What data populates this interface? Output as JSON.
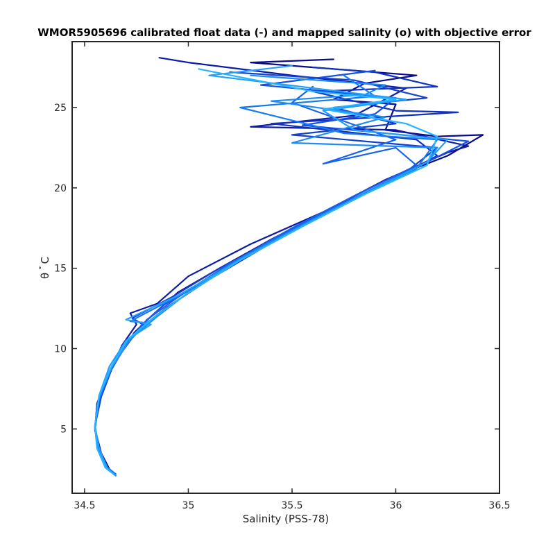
{
  "chart_data": {
    "type": "line",
    "title": "WMOR5905696 calibrated float data (-) and mapped salinity (o) with objective error",
    "xlabel": "Salinity (PSS-78)",
    "ylabel_symbol": "θ",
    "ylabel_degree": "°",
    "ylabel_unit": "C",
    "xlim": [
      34.44,
      36.5
    ],
    "ylim": [
      1.0,
      29.1
    ],
    "xticks": [
      34.5,
      35,
      35.5,
      36,
      36.5
    ],
    "xtick_labels": [
      "34.5",
      "35",
      "35.5",
      "36",
      "36.5"
    ],
    "yticks": [
      5,
      10,
      15,
      20,
      25
    ],
    "ytick_labels": [
      "5",
      "10",
      "15",
      "20",
      "25"
    ],
    "grid": false,
    "colors": {
      "dark": "#0a0a8c",
      "mid": "#1450e6",
      "light": "#28b4ff",
      "axis": "#262626"
    },
    "profiles": [
      {
        "color": "#0a0a8c",
        "x": [
          34.65,
          34.62,
          34.58,
          34.55,
          34.56,
          34.6,
          34.66,
          34.74,
          34.82,
          34.95,
          35.15,
          35.4,
          35.7,
          35.95,
          36.25,
          36.42,
          36.2,
          35.95,
          36.0,
          35.7,
          35.85,
          36.1,
          35.3,
          35.7
        ],
        "y": [
          2.1,
          2.5,
          3.5,
          5.0,
          6.5,
          8.0,
          9.5,
          11.0,
          12.0,
          13.5,
          15.0,
          16.8,
          18.8,
          20.5,
          22.0,
          23.3,
          23.2,
          23.6,
          25.2,
          25.5,
          26.5,
          27.0,
          27.8,
          28.0
        ]
      },
      {
        "color": "#0d1aa6",
        "x": [
          34.64,
          34.61,
          34.57,
          34.55,
          34.57,
          34.62,
          34.68,
          34.75,
          34.72,
          34.85,
          35.0,
          35.3,
          35.65,
          35.95,
          36.25,
          36.35,
          36.0,
          35.3,
          35.8,
          36.05,
          35.5,
          35.0,
          34.86
        ],
        "y": [
          2.2,
          2.6,
          3.6,
          5.0,
          6.8,
          8.5,
          10.2,
          11.5,
          12.2,
          12.8,
          14.5,
          16.5,
          18.5,
          20.5,
          22.2,
          22.6,
          23.6,
          23.8,
          24.5,
          26.2,
          27.0,
          27.8,
          28.1
        ]
      },
      {
        "color": "#1030c0",
        "x": [
          34.65,
          34.62,
          34.58,
          34.55,
          34.56,
          34.61,
          34.68,
          34.76,
          34.9,
          35.1,
          35.35,
          35.65,
          35.95,
          36.2,
          36.1,
          35.4,
          36.3,
          36.0,
          35.6,
          36.2,
          35.9,
          35.6
        ],
        "y": [
          2.1,
          2.4,
          3.4,
          4.9,
          6.6,
          8.3,
          9.8,
          11.2,
          12.6,
          14.3,
          16.2,
          18.4,
          20.3,
          22.0,
          23.0,
          24.0,
          24.7,
          24.8,
          26.0,
          26.3,
          27.2,
          27.5
        ]
      },
      {
        "color": "#1440d0",
        "x": [
          34.64,
          34.6,
          34.56,
          34.55,
          34.58,
          34.63,
          34.7,
          34.78,
          34.73,
          34.92,
          35.15,
          35.45,
          35.75,
          36.05,
          36.2,
          35.5,
          36.0,
          35.7,
          36.15,
          35.8,
          35.2
        ],
        "y": [
          2.2,
          2.7,
          3.9,
          5.2,
          7.0,
          8.7,
          10.3,
          11.5,
          11.9,
          13.2,
          15.0,
          17.0,
          19.0,
          21.0,
          22.5,
          23.3,
          24.0,
          25.0,
          25.6,
          26.7,
          27.2
        ]
      },
      {
        "color": "#1450e6",
        "x": [
          34.65,
          34.61,
          34.57,
          34.55,
          34.57,
          34.62,
          34.69,
          34.77,
          34.88,
          35.05,
          35.3,
          35.6,
          35.9,
          36.15,
          36.35,
          35.55,
          35.9,
          36.0,
          35.35,
          35.9
        ],
        "y": [
          2.1,
          2.5,
          3.7,
          5.1,
          6.9,
          8.6,
          10.0,
          11.4,
          12.7,
          14.0,
          16.0,
          18.1,
          20.0,
          21.6,
          22.9,
          23.9,
          24.6,
          25.6,
          26.4,
          27.3
        ]
      },
      {
        "color": "#1664ee",
        "x": [
          34.64,
          34.6,
          34.57,
          34.55,
          34.57,
          34.62,
          34.7,
          34.8,
          34.95,
          35.2,
          35.5,
          35.8,
          36.1,
          36.0,
          35.65,
          36.0,
          35.5,
          35.6
        ],
        "y": [
          2.2,
          2.6,
          3.8,
          5.1,
          6.8,
          8.6,
          10.2,
          11.8,
          13.2,
          15.3,
          17.5,
          19.5,
          21.4,
          22.5,
          21.5,
          23.0,
          25.3,
          26.3
        ]
      },
      {
        "color": "#1878f4",
        "x": [
          34.65,
          34.61,
          34.57,
          34.55,
          34.57,
          34.63,
          34.71,
          34.8,
          34.72,
          34.94,
          35.2,
          35.5,
          35.8,
          36.1,
          36.2,
          35.75,
          35.25,
          35.9,
          35.75
        ],
        "y": [
          2.2,
          2.6,
          3.7,
          5.1,
          6.9,
          8.8,
          10.4,
          11.6,
          11.7,
          13.2,
          15.2,
          17.3,
          19.3,
          21.2,
          23.0,
          23.4,
          25.0,
          25.7,
          27.0
        ]
      },
      {
        "color": "#1c8cf8",
        "x": [
          34.64,
          34.6,
          34.56,
          34.55,
          34.57,
          34.63,
          34.72,
          34.85,
          35.0,
          35.25,
          35.55,
          35.85,
          36.15,
          36.2,
          35.5,
          35.95,
          35.4,
          35.85,
          35.95,
          35.3
        ],
        "y": [
          2.2,
          2.6,
          3.8,
          5.2,
          7.0,
          8.8,
          10.6,
          12.0,
          13.5,
          15.6,
          17.7,
          19.7,
          21.6,
          22.5,
          22.8,
          24.4,
          25.4,
          25.8,
          26.4,
          27.0
        ]
      },
      {
        "color": "#20a0fc",
        "x": [
          34.65,
          34.61,
          34.57,
          34.55,
          34.57,
          34.62,
          34.7,
          34.82,
          34.7,
          34.95,
          35.25,
          35.55,
          35.85,
          36.15,
          36.25,
          35.8,
          35.65,
          36.05,
          35.1,
          35.5
        ],
        "y": [
          2.1,
          2.5,
          3.8,
          5.2,
          7.1,
          8.9,
          10.5,
          11.5,
          11.8,
          13.3,
          15.5,
          17.6,
          19.6,
          21.6,
          23.0,
          23.6,
          24.8,
          25.5,
          27.0,
          27.6
        ]
      },
      {
        "color": "#28b4ff",
        "x": [
          34.64,
          34.6,
          34.56,
          34.55,
          34.57,
          34.63,
          34.71,
          34.83,
          34.98,
          35.25,
          35.55,
          35.85,
          36.15,
          36.2,
          36.05,
          35.65,
          36.0,
          35.6,
          35.05
        ],
        "y": [
          2.2,
          2.6,
          3.8,
          5.2,
          7.1,
          8.9,
          10.6,
          11.9,
          13.3,
          15.5,
          17.6,
          19.6,
          21.4,
          23.2,
          24.0,
          24.9,
          25.5,
          26.0,
          27.4
        ]
      }
    ]
  }
}
